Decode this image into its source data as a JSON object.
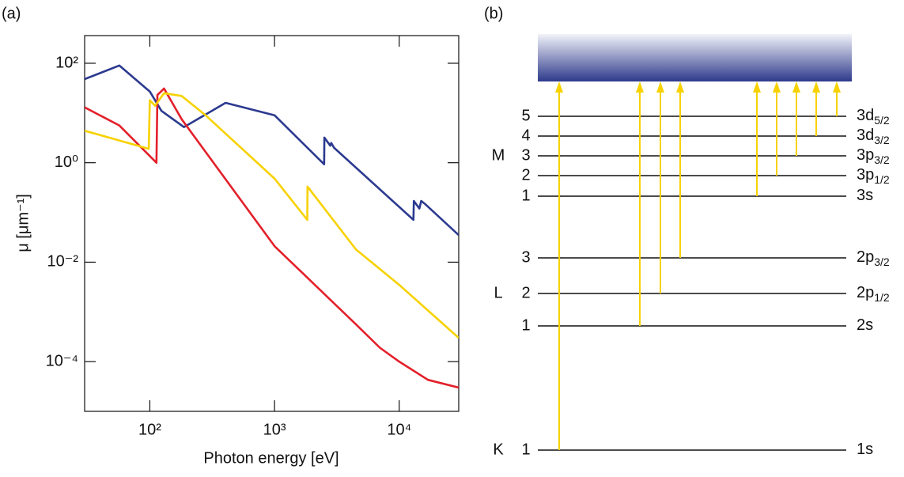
{
  "chart_data": {
    "type": "line",
    "panel_label": "(a)",
    "x_label": "Photon energy [eV]",
    "y_label": "μ [μm⁻¹]",
    "xscale": "log",
    "yscale": "log",
    "xlim": [
      30,
      30000
    ],
    "ylim": [
      1e-05,
      360
    ],
    "xticks": [
      {
        "value": 100,
        "label": "10²"
      },
      {
        "value": 1000,
        "label": "10³"
      },
      {
        "value": 10000,
        "label": "10⁴"
      }
    ],
    "yticks": [
      {
        "value": 100,
        "label": "10²"
      },
      {
        "value": 1,
        "label": "10⁰"
      },
      {
        "value": 0.01,
        "label": "10⁻²"
      },
      {
        "value": 0.0001,
        "label": "10⁻⁴"
      }
    ],
    "series": [
      {
        "color": "#2b3a8f",
        "x": [
          30,
          57,
          100,
          124,
          188,
          405,
          1000,
          2500,
          2510,
          2800,
          2850,
          3000,
          13000,
          13100,
          14500,
          15000,
          16000,
          30000
        ],
        "values": [
          48,
          90,
          27,
          11,
          5.2,
          16,
          9,
          0.93,
          3.2,
          2.2,
          2.5,
          2.0,
          0.071,
          0.17,
          0.12,
          0.17,
          0.15,
          0.035
        ]
      },
      {
        "color": "#e3202a",
        "x": [
          30,
          57,
          113,
          115,
          130,
          180,
          1000,
          4500,
          7000,
          10000,
          17000,
          30000
        ],
        "values": [
          13,
          5.6,
          1.0,
          23,
          31,
          7.5,
          0.021,
          0.00056,
          0.00019,
          0.0001,
          4.3e-05,
          3e-05
        ]
      },
      {
        "color": "#f7d200",
        "x": [
          30,
          57,
          80,
          98,
          100,
          110,
          130,
          180,
          280,
          1000,
          1830,
          1840,
          4500,
          10000,
          30000
        ],
        "values": [
          4.4,
          2.8,
          2.2,
          1.9,
          18,
          14,
          25,
          22,
          9,
          0.48,
          0.071,
          0.33,
          0.018,
          0.0035,
          0.0003
        ]
      }
    ]
  },
  "diagram": {
    "panel_label": "(b)",
    "shells": [
      {
        "name": "M",
        "levels": [
          {
            "number": 5,
            "orbital": "3d",
            "subscript": "5/2"
          },
          {
            "number": 4,
            "orbital": "3d",
            "subscript": "3/2"
          },
          {
            "number": 3,
            "orbital": "3p",
            "subscript": "3/2"
          },
          {
            "number": 2,
            "orbital": "3p",
            "subscript": "1/2"
          },
          {
            "number": 1,
            "orbital": "3s"
          }
        ]
      },
      {
        "name": "L",
        "levels": [
          {
            "number": 3,
            "orbital": "2p",
            "subscript": "3/2"
          },
          {
            "number": 2,
            "orbital": "2p",
            "subscript": "1/2"
          },
          {
            "number": 1,
            "orbital": "2s"
          }
        ]
      },
      {
        "name": "K",
        "levels": [
          {
            "number": 1,
            "orbital": "1s"
          }
        ]
      }
    ]
  }
}
